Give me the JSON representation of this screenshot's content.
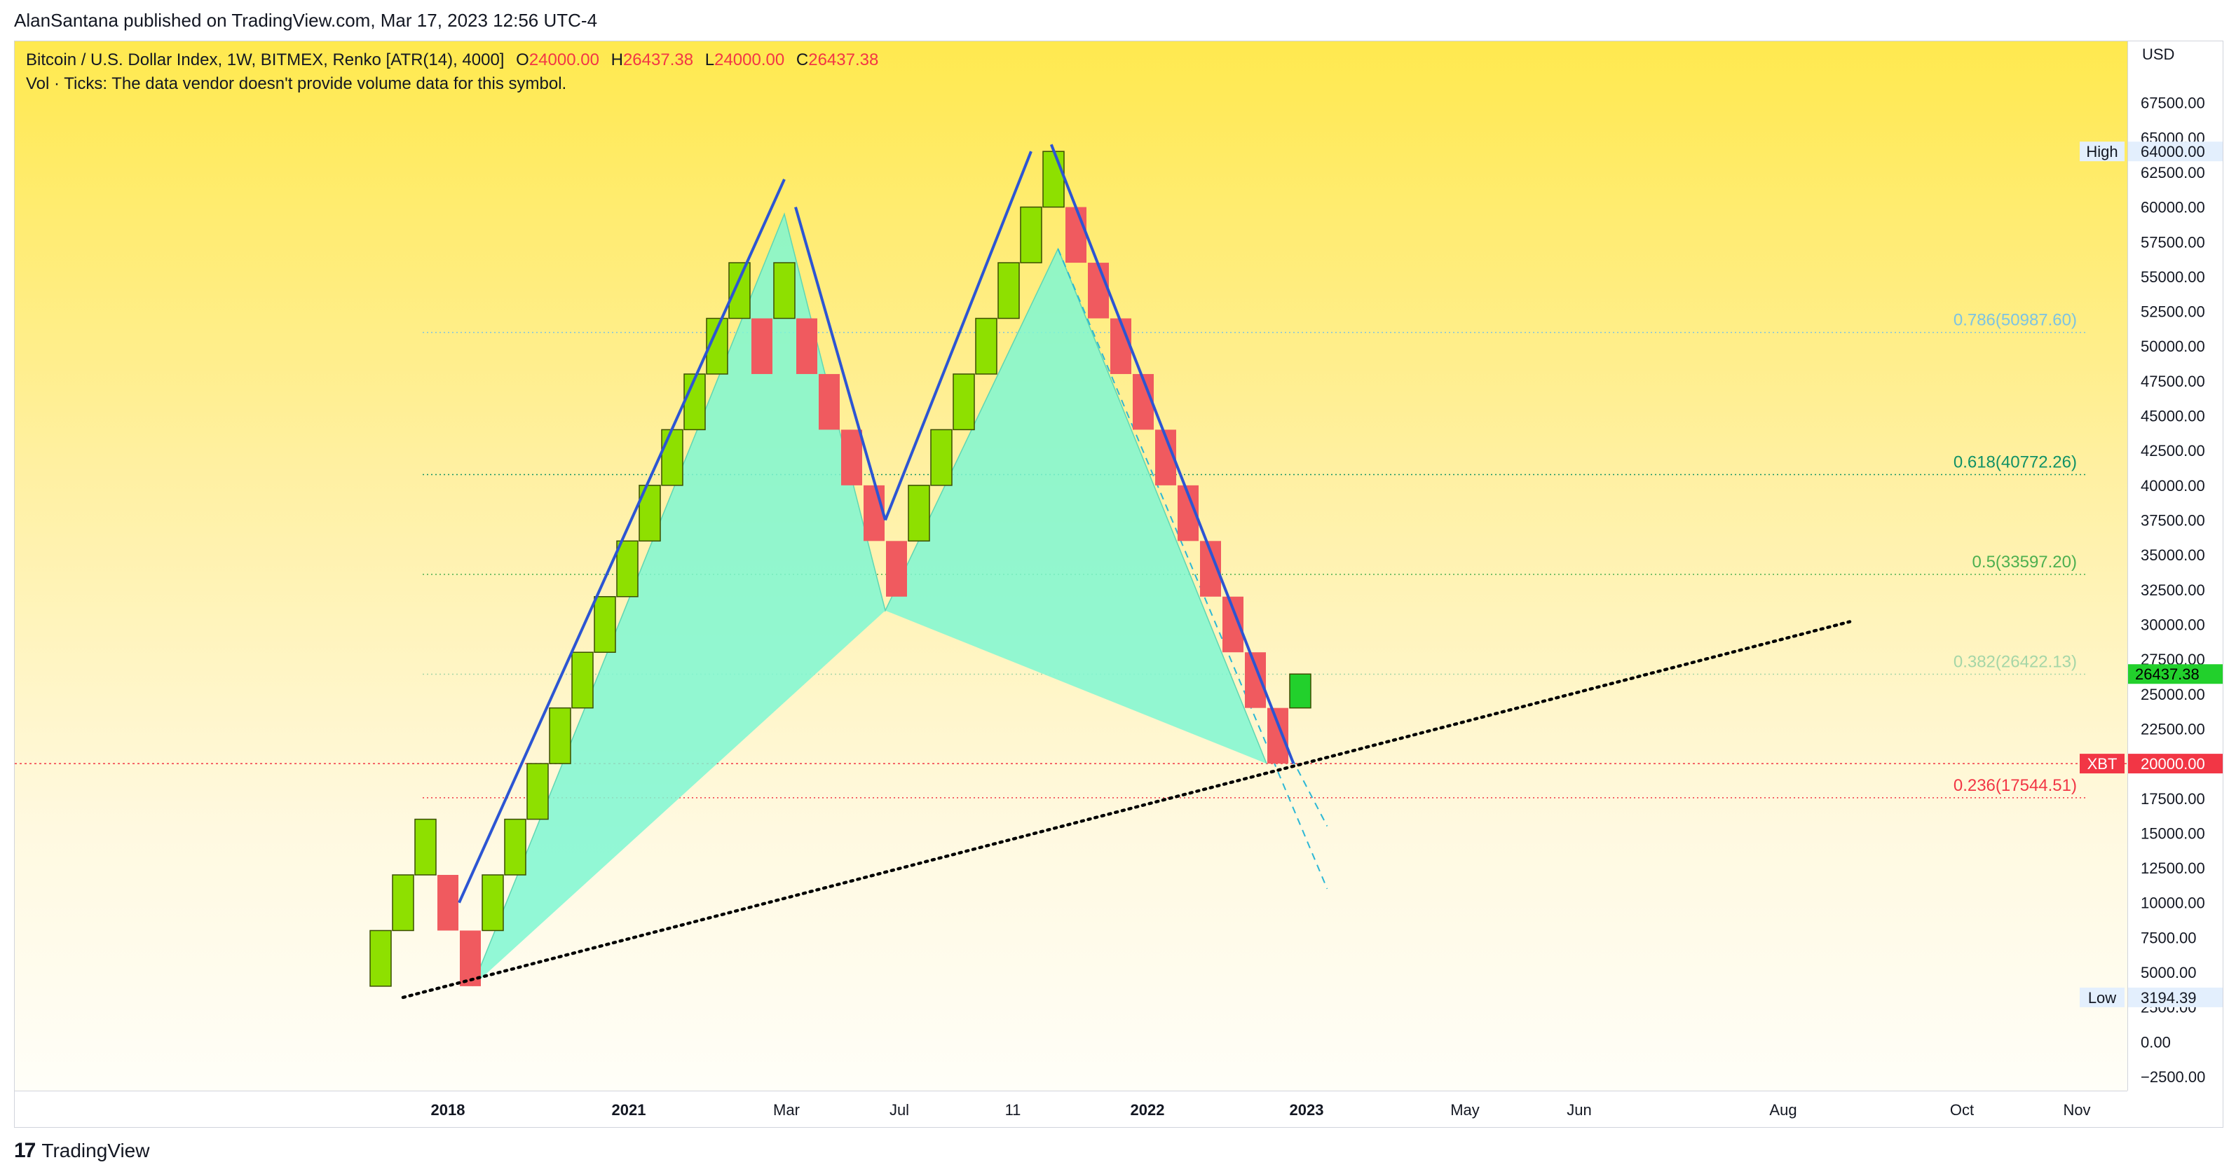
{
  "publisher_line": "AlanSantana published on TradingView.com, Mar 17, 2023 12:56 UTC-4",
  "legend": {
    "symbol": "Bitcoin / U.S. Dollar Index, 1W, BITMEX, Renko [ATR(14), 4000]",
    "open_label": "O",
    "open": "24000.00",
    "high_label": "H",
    "high": "26437.38",
    "low_label": "L",
    "low": "24000.00",
    "close_label": "C",
    "close": "26437.38",
    "vol_line": "Vol · Ticks: The data vendor doesn't provide volume data for this symbol."
  },
  "footer": {
    "brand": "TradingView"
  },
  "colors": {
    "up": "#8ee000",
    "down": "#f05a5f",
    "pattern_fill": "#7ff7d2",
    "trend_line": "#2c55d3",
    "support_line": "#000000",
    "fib_786": "#7cc3e3",
    "fib_618": "#109166",
    "fib_5": "#4caf50",
    "fib_382": "#a5d6a7",
    "fib_236": "#f23645"
  },
  "chart_data": {
    "type": "renko",
    "currency": "USD",
    "y_range": [
      -2500,
      70000
    ],
    "x_range": [
      "2017-09",
      "2023-11"
    ],
    "y_ticks": [
      "67500.00",
      "65000.00",
      "62500.00",
      "60000.00",
      "57500.00",
      "55000.00",
      "52500.00",
      "50000.00",
      "47500.00",
      "45000.00",
      "42500.00",
      "40000.00",
      "37500.00",
      "35000.00",
      "32500.00",
      "30000.00",
      "27500.00",
      "25000.00",
      "22500.00",
      "20000.00",
      "17500.00",
      "15000.00",
      "12500.00",
      "10000.00",
      "7500.00",
      "5000.00",
      "2500.00",
      "0.00",
      "−2500.00"
    ],
    "x_ticks": [
      {
        "label": "2018",
        "bold": true
      },
      {
        "label": "2021",
        "bold": true
      },
      {
        "label": "Mar",
        "bold": false
      },
      {
        "label": "Jul",
        "bold": false
      },
      {
        "label": "11",
        "bold": false
      },
      {
        "label": "2022",
        "bold": true
      },
      {
        "label": "2023",
        "bold": true
      },
      {
        "label": "May",
        "bold": false
      },
      {
        "label": "Jun",
        "bold": false
      },
      {
        "label": "Aug",
        "bold": false
      },
      {
        "label": "Oct",
        "bold": false
      },
      {
        "label": "Nov",
        "bold": false
      }
    ],
    "brick_size": 4000,
    "bricks": [
      {
        "dir": "up",
        "open": 4000,
        "close": 8000
      },
      {
        "dir": "up",
        "open": 8000,
        "close": 12000
      },
      {
        "dir": "up",
        "open": 12000,
        "close": 16000
      },
      {
        "dir": "down",
        "open": 12000,
        "close": 8000
      },
      {
        "dir": "down",
        "open": 8000,
        "close": 4000
      },
      {
        "dir": "up",
        "open": 8000,
        "close": 12000
      },
      {
        "dir": "up",
        "open": 12000,
        "close": 16000
      },
      {
        "dir": "up",
        "open": 16000,
        "close": 20000
      },
      {
        "dir": "up",
        "open": 20000,
        "close": 24000
      },
      {
        "dir": "up",
        "open": 24000,
        "close": 28000
      },
      {
        "dir": "up",
        "open": 28000,
        "close": 32000
      },
      {
        "dir": "up",
        "open": 32000,
        "close": 36000
      },
      {
        "dir": "up",
        "open": 36000,
        "close": 40000
      },
      {
        "dir": "up",
        "open": 40000,
        "close": 44000
      },
      {
        "dir": "up",
        "open": 44000,
        "close": 48000
      },
      {
        "dir": "up",
        "open": 48000,
        "close": 52000
      },
      {
        "dir": "up",
        "open": 52000,
        "close": 56000
      },
      {
        "dir": "down",
        "open": 52000,
        "close": 48000
      },
      {
        "dir": "up",
        "open": 52000,
        "close": 56000
      },
      {
        "dir": "down",
        "open": 52000,
        "close": 48000
      },
      {
        "dir": "down",
        "open": 48000,
        "close": 44000
      },
      {
        "dir": "down",
        "open": 44000,
        "close": 40000
      },
      {
        "dir": "down",
        "open": 40000,
        "close": 36000
      },
      {
        "dir": "down",
        "open": 36000,
        "close": 32000
      },
      {
        "dir": "up",
        "open": 36000,
        "close": 40000
      },
      {
        "dir": "up",
        "open": 40000,
        "close": 44000
      },
      {
        "dir": "up",
        "open": 44000,
        "close": 48000
      },
      {
        "dir": "up",
        "open": 48000,
        "close": 52000
      },
      {
        "dir": "up",
        "open": 52000,
        "close": 56000
      },
      {
        "dir": "up",
        "open": 56000,
        "close": 60000
      },
      {
        "dir": "up",
        "open": 60000,
        "close": 64000
      },
      {
        "dir": "down",
        "open": 60000,
        "close": 56000
      },
      {
        "dir": "down",
        "open": 56000,
        "close": 52000
      },
      {
        "dir": "down",
        "open": 52000,
        "close": 48000
      },
      {
        "dir": "down",
        "open": 48000,
        "close": 44000
      },
      {
        "dir": "down",
        "open": 44000,
        "close": 40000
      },
      {
        "dir": "down",
        "open": 40000,
        "close": 36000
      },
      {
        "dir": "down",
        "open": 36000,
        "close": 32000
      },
      {
        "dir": "down",
        "open": 32000,
        "close": 28000
      },
      {
        "dir": "down",
        "open": 28000,
        "close": 24000
      },
      {
        "dir": "down",
        "open": 24000,
        "close": 20000
      },
      {
        "dir": "up",
        "open": 24000,
        "close": 26437.38,
        "highlight": true
      }
    ],
    "fib_levels": [
      {
        "ratio": "0.786",
        "value": 50987.6,
        "label": "0.786(50987.60)",
        "color": "#7cc3e3"
      },
      {
        "ratio": "0.618",
        "value": 40772.26,
        "label": "0.618(40772.26)",
        "color": "#109166"
      },
      {
        "ratio": "0.5",
        "value": 33597.2,
        "label": "0.5(33597.20)",
        "color": "#4caf50"
      },
      {
        "ratio": "0.382",
        "value": 26422.13,
        "label": "0.382(26422.13)",
        "color": "#a5d6a7"
      },
      {
        "ratio": "0.236",
        "value": 17544.51,
        "label": "0.236(17544.51)",
        "color": "#f23645"
      }
    ],
    "price_labels": [
      {
        "tag": "High",
        "value": 64000.0,
        "text": "64000.00"
      },
      {
        "tag": "",
        "value": 26437.38,
        "text": "26437.38",
        "current": true
      },
      {
        "tag": "XBT",
        "value": 20000.0,
        "text": "20000.00",
        "alert": true
      },
      {
        "tag": "Low",
        "value": 3194.39,
        "text": "3194.39"
      }
    ],
    "harmonic_pattern": [
      {
        "brick": 4.6,
        "value": 4000
      },
      {
        "brick": 18.5,
        "value": 59500
      },
      {
        "brick": 23,
        "value": 31000
      },
      {
        "brick": 30.7,
        "value": 57000
      },
      {
        "brick": 40,
        "value": 20000
      }
    ],
    "trend_lines": [
      {
        "from": {
          "brick": 4,
          "value": 10000
        },
        "to": {
          "brick": 18.5,
          "value": 62000
        }
      },
      {
        "from": {
          "brick": 19,
          "value": 60000
        },
        "to": {
          "brick": 23,
          "value": 37500
        }
      },
      {
        "from": {
          "brick": 23,
          "value": 37500
        },
        "to": {
          "brick": 29.5,
          "value": 64000
        }
      },
      {
        "from": {
          "brick": 30.4,
          "value": 64500
        },
        "to": {
          "brick": 41.2,
          "value": 20000
        }
      }
    ],
    "support_line": {
      "from": {
        "brick": 1.5,
        "value": 3194
      },
      "to": {
        "brick": 66,
        "value": 30200
      }
    }
  }
}
